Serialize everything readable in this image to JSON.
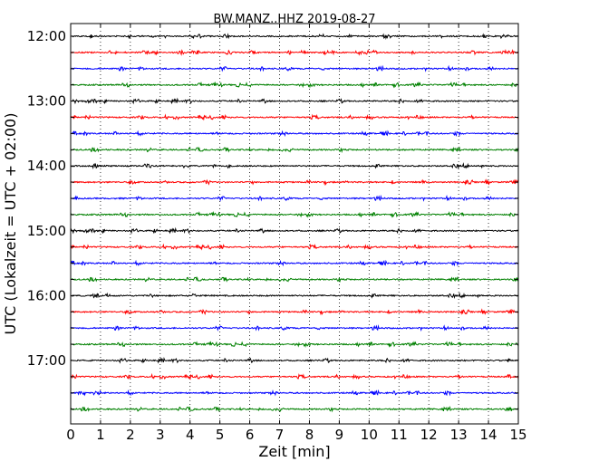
{
  "chart_data": {
    "type": "line",
    "title": "BW.MANZ..HHZ 2019-08-27",
    "xlabel": "Zeit  [min]",
    "ylabel": "UTC (Lokalzeit = UTC + 02:00)",
    "xlim": [
      0,
      15
    ],
    "xticks": [
      "0",
      "1",
      "2",
      "3",
      "4",
      "5",
      "6",
      "7",
      "8",
      "9",
      "10",
      "11",
      "12",
      "13",
      "14",
      "15"
    ],
    "yticks": [
      "12:00",
      "13:00",
      "14:00",
      "15:00",
      "16:00",
      "17:00"
    ],
    "grid": "vertical-dotted",
    "trace_start_hour": 12,
    "trace_interval_minutes": 15,
    "trace_count": 24,
    "series_colors": [
      "#000000",
      "#ff0000",
      "#0000ff",
      "#008000"
    ]
  }
}
